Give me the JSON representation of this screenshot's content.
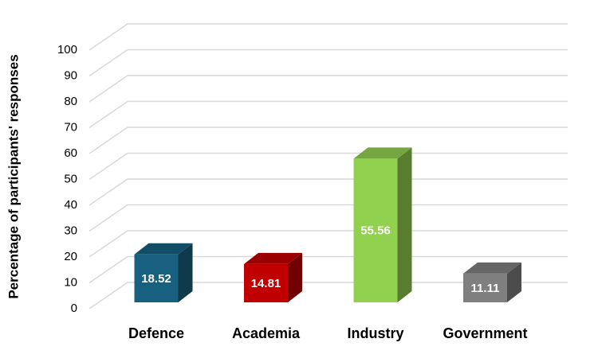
{
  "chart_data": {
    "type": "bar3d",
    "y_label": "Percentage of participants' responses",
    "categories": [
      "Defence",
      "Academia",
      "Industry",
      "Government"
    ],
    "values": [
      18.52,
      14.81,
      55.56,
      11.11
    ],
    "colors": [
      "#17607f",
      "#c00000",
      "#92d050",
      "#7f7f7f"
    ],
    "ylim": [
      0,
      100
    ],
    "yticks": [
      0,
      10,
      20,
      30,
      40,
      50,
      60,
      70,
      80,
      90,
      100
    ],
    "grid": true
  }
}
